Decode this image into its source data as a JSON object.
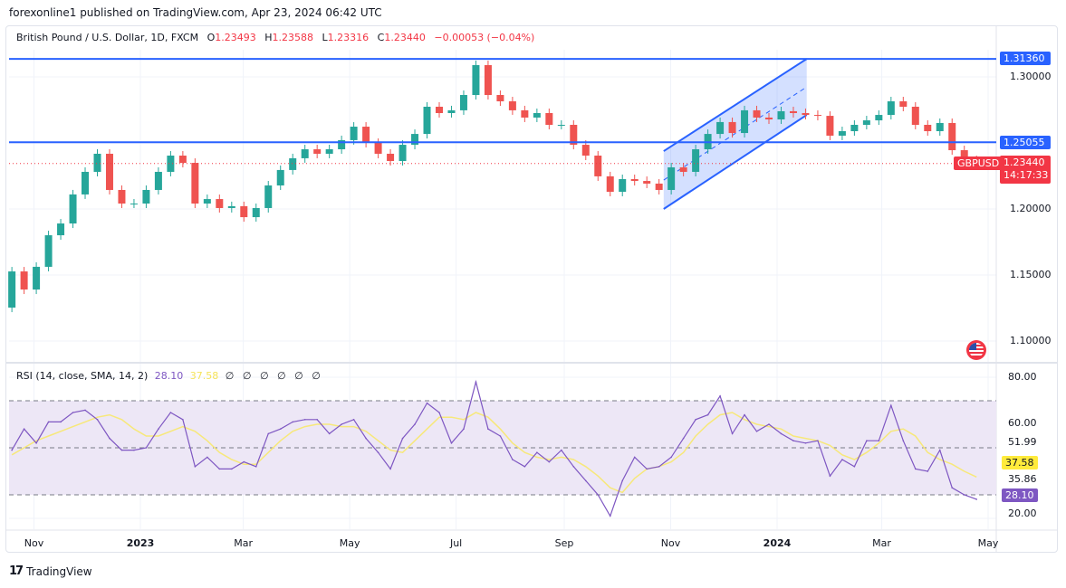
{
  "publisher_line": "forexonline1 published on TradingView.com, Apr 23, 2024 06:42 UTC",
  "legend": {
    "symbol_desc": "British Pound / U.S. Dollar, 1D, FXCM",
    "open_label": "O",
    "open": "1.23493",
    "high_label": "H",
    "high": "1.23588",
    "low_label": "L",
    "low": "1.23316",
    "close_label": "C",
    "close": "1.23440",
    "change": "−0.00053 (−0.04%)"
  },
  "rsi_legend": {
    "title": "RSI (14, close, SMA, 14, 2)",
    "rsi_value": "28.10",
    "sma_value": "37.58",
    "empty_values": [
      "∅",
      "∅",
      "∅",
      "∅",
      "∅",
      "∅"
    ]
  },
  "price_axis": {
    "ticks": [
      "1.30000",
      "1.20000",
      "1.15000",
      "1.10000"
    ],
    "tick_values": [
      1.3,
      1.2,
      1.15,
      1.1
    ],
    "level_labels": [
      "1.31360",
      "1.25055"
    ],
    "symbol_tag": "GBPUSD",
    "last_price": "1.23440",
    "countdown": "14:17:33"
  },
  "rsi_axis": {
    "ticks": [
      "80.00",
      "60.00",
      "20.00"
    ],
    "extra_labels": [
      "51.99",
      "35.86"
    ],
    "sma_tag": "37.58",
    "rsi_tag": "28.10"
  },
  "time_axis": {
    "labels": [
      {
        "text": "Nov",
        "date": "2022-11-01",
        "bold": false
      },
      {
        "text": "2023",
        "date": "2023-01-01",
        "bold": true
      },
      {
        "text": "Mar",
        "date": "2023-03-01",
        "bold": false
      },
      {
        "text": "May",
        "date": "2023-05-01",
        "bold": false
      },
      {
        "text": "Jul",
        "date": "2023-07-01",
        "bold": false
      },
      {
        "text": "Sep",
        "date": "2023-09-01",
        "bold": false
      },
      {
        "text": "Nov",
        "date": "2023-11-01",
        "bold": false
      },
      {
        "text": "2024",
        "date": "2024-01-01",
        "bold": true
      },
      {
        "text": "Mar",
        "date": "2024-03-01",
        "bold": false
      },
      {
        "text": "May",
        "date": "2024-05-01",
        "bold": false
      }
    ]
  },
  "footer": {
    "brand": "TradingView"
  },
  "colors": {
    "up": "#26a69a",
    "down": "#ef5350",
    "level_line": "#2962ff",
    "rsi": "#7e57c2",
    "rsi_sma": "#f7e87a",
    "rsi_band": "#ede7f6",
    "last_price": "#f23645"
  },
  "chart_data": [
    {
      "type": "candlestick",
      "title": "British Pound / U.S. Dollar, 1D, FXCM",
      "ylim": [
        1.095,
        1.325
      ],
      "weeks": [
        "2022-10-17",
        "2022-10-24",
        "2022-10-31",
        "2022-11-07",
        "2022-11-14",
        "2022-11-21",
        "2022-11-28",
        "2022-12-05",
        "2022-12-12",
        "2022-12-19",
        "2022-12-26",
        "2023-01-02",
        "2023-01-09",
        "2023-01-16",
        "2023-01-23",
        "2023-01-30",
        "2023-02-06",
        "2023-02-13",
        "2023-02-20",
        "2023-02-27",
        "2023-03-06",
        "2023-03-13",
        "2023-03-20",
        "2023-03-27",
        "2023-04-03",
        "2023-04-10",
        "2023-04-17",
        "2023-04-24",
        "2023-05-01",
        "2023-05-08",
        "2023-05-15",
        "2023-05-22",
        "2023-05-29",
        "2023-06-05",
        "2023-06-12",
        "2023-06-19",
        "2023-06-26",
        "2023-07-03",
        "2023-07-10",
        "2023-07-17",
        "2023-07-24",
        "2023-07-31",
        "2023-08-07",
        "2023-08-14",
        "2023-08-21",
        "2023-08-28",
        "2023-09-04",
        "2023-09-11",
        "2023-09-18",
        "2023-09-25",
        "2023-10-02",
        "2023-10-09",
        "2023-10-16",
        "2023-10-23",
        "2023-10-30",
        "2023-11-06",
        "2023-11-13",
        "2023-11-20",
        "2023-11-27",
        "2023-12-04",
        "2023-12-11",
        "2023-12-18",
        "2023-12-25",
        "2024-01-01",
        "2024-01-08",
        "2024-01-15",
        "2024-01-22",
        "2024-01-29",
        "2024-02-05",
        "2024-02-12",
        "2024-02-19",
        "2024-02-26",
        "2024-03-04",
        "2024-03-11",
        "2024-03-18",
        "2024-03-25",
        "2024-04-01",
        "2024-04-08",
        "2024-04-15",
        "2024-04-22"
      ],
      "first_open": 1.1253,
      "closes": [
        1.1527,
        1.139,
        1.1562,
        1.1801,
        1.189,
        1.211,
        1.2281,
        1.2418,
        1.2144,
        1.2041,
        1.2041,
        1.2144,
        1.2281,
        1.2404,
        1.2349,
        1.2041,
        1.2075,
        1.2007,
        1.2021,
        1.1938,
        1.2007,
        1.2178,
        1.2295,
        1.2384,
        1.2452,
        1.2418,
        1.2452,
        1.2521,
        1.2623,
        1.25,
        1.2418,
        1.2363,
        1.2486,
        1.2568,
        1.2774,
        1.2726,
        1.2747,
        1.2863,
        1.3089,
        1.2863,
        1.2815,
        1.2747,
        1.2692,
        1.2726,
        1.2637,
        1.2637,
        1.2486,
        1.2404,
        1.2247,
        1.213,
        1.2226,
        1.2212,
        1.2192,
        1.2144,
        1.2315,
        1.2281,
        1.2452,
        1.2568,
        1.2658,
        1.2575,
        1.2747,
        1.2692,
        1.2678,
        1.274,
        1.2726,
        1.2712,
        1.2705,
        1.2555,
        1.2589,
        1.2637,
        1.2671,
        1.2712,
        1.2815,
        1.2774,
        1.2637,
        1.2589,
        1.2651,
        1.2445,
        1.237,
        1.2344
      ],
      "horizontal_levels": [
        1.3136,
        1.25055
      ],
      "last_price": 1.2344,
      "channel": {
        "start": "2023-10-28",
        "end": "2024-01-18",
        "upper": [
          1.2438,
          1.3136
        ],
        "lower": [
          1.2,
          1.2712
        ]
      }
    },
    {
      "type": "line",
      "title": "RSI (14, close, SMA, 14, 2)",
      "ylim": [
        15,
        85
      ],
      "bands": {
        "upper": 70,
        "middle": 50,
        "lower": 30
      },
      "series": [
        {
          "name": "RSI",
          "values": [
            49,
            58,
            52,
            61,
            61,
            65,
            66,
            62,
            54,
            49,
            49,
            50,
            58,
            65,
            62,
            42,
            46,
            41,
            41,
            44,
            42,
            56,
            58,
            61,
            62,
            62,
            56,
            60,
            62,
            54,
            48,
            41,
            54,
            60,
            69,
            65,
            52,
            58,
            78,
            58,
            55,
            45,
            42,
            48,
            44,
            49,
            42,
            36,
            30,
            21,
            36,
            46,
            41,
            42,
            46,
            54,
            62,
            64,
            72,
            56,
            64,
            57,
            60,
            56,
            53,
            52,
            53,
            38,
            45,
            42,
            53,
            53,
            68,
            53,
            41,
            40,
            49,
            33,
            30,
            28.1
          ]
        },
        {
          "name": "SMA",
          "values": [
            47,
            50,
            53,
            55,
            57,
            59,
            61,
            63,
            64,
            62,
            58,
            55,
            55,
            57,
            59,
            57,
            53,
            48,
            45,
            43,
            43,
            48,
            53,
            57,
            59,
            60,
            60,
            59,
            59,
            57,
            53,
            49,
            48,
            53,
            58,
            63,
            63,
            62,
            65,
            63,
            58,
            52,
            48,
            46,
            45,
            46,
            45,
            42,
            38,
            33,
            31,
            37,
            41,
            42,
            44,
            48,
            55,
            60,
            64,
            65,
            62,
            60,
            59,
            58,
            55,
            54,
            53,
            51,
            47,
            45,
            48,
            52,
            57,
            58,
            55,
            48,
            45,
            43,
            40,
            37.58
          ]
        }
      ]
    }
  ]
}
